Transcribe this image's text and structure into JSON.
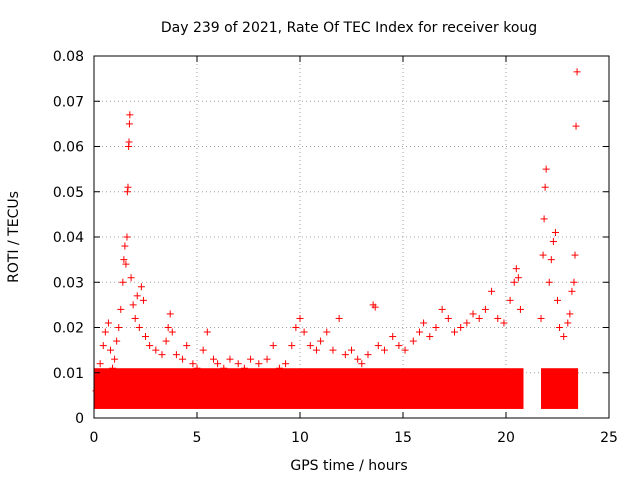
{
  "chart_data": {
    "type": "scatter",
    "title": "Day 239 of 2021, Rate Of TEC Index for receiver koug",
    "xlabel": "GPS time / hours",
    "ylabel": "ROTI / TECUs",
    "xlim": [
      0,
      25
    ],
    "ylim": [
      0,
      0.08
    ],
    "x_ticks": [
      0,
      5,
      10,
      15,
      20,
      25
    ],
    "x_tick_labels": [
      "0",
      "5",
      "10",
      "15",
      "20",
      "25"
    ],
    "y_ticks": [
      0,
      0.01,
      0.02,
      0.03,
      0.04,
      0.05,
      0.06,
      0.07,
      0.08
    ],
    "y_tick_labels": [
      "0",
      "0.01",
      "0.02",
      "0.03",
      "0.04",
      "0.05",
      "0.06",
      "0.07",
      "0.08"
    ],
    "grid": true,
    "marker": "plus",
    "color": "#ff0000",
    "series": [
      {
        "name": "ROTI",
        "points": [
          [
            0.1,
            0.006
          ],
          [
            0.2,
            0.009
          ],
          [
            0.3,
            0.012
          ],
          [
            0.45,
            0.016
          ],
          [
            0.55,
            0.019
          ],
          [
            0.7,
            0.021
          ],
          [
            0.8,
            0.015
          ],
          [
            0.9,
            0.011
          ],
          [
            1.0,
            0.013
          ],
          [
            1.1,
            0.017
          ],
          [
            1.2,
            0.02
          ],
          [
            1.3,
            0.024
          ],
          [
            1.4,
            0.03
          ],
          [
            1.45,
            0.035
          ],
          [
            1.5,
            0.038
          ],
          [
            1.55,
            0.034
          ],
          [
            1.6,
            0.04
          ],
          [
            1.62,
            0.05
          ],
          [
            1.65,
            0.051
          ],
          [
            1.68,
            0.06
          ],
          [
            1.7,
            0.061
          ],
          [
            1.72,
            0.065
          ],
          [
            1.74,
            0.067
          ],
          [
            1.8,
            0.031
          ],
          [
            1.9,
            0.025
          ],
          [
            2.0,
            0.022
          ],
          [
            2.1,
            0.027
          ],
          [
            2.2,
            0.02
          ],
          [
            2.3,
            0.029
          ],
          [
            2.4,
            0.026
          ],
          [
            2.5,
            0.018
          ],
          [
            2.7,
            0.016
          ],
          [
            3.0,
            0.015
          ],
          [
            3.3,
            0.014
          ],
          [
            3.5,
            0.017
          ],
          [
            3.6,
            0.02
          ],
          [
            3.7,
            0.023
          ],
          [
            3.8,
            0.019
          ],
          [
            4.0,
            0.014
          ],
          [
            4.3,
            0.013
          ],
          [
            4.5,
            0.016
          ],
          [
            4.8,
            0.012
          ],
          [
            5.0,
            0.011
          ],
          [
            5.3,
            0.015
          ],
          [
            5.5,
            0.019
          ],
          [
            5.8,
            0.013
          ],
          [
            6.0,
            0.012
          ],
          [
            6.3,
            0.011
          ],
          [
            6.6,
            0.013
          ],
          [
            7.0,
            0.012
          ],
          [
            7.3,
            0.011
          ],
          [
            7.6,
            0.013
          ],
          [
            8.0,
            0.012
          ],
          [
            8.4,
            0.013
          ],
          [
            8.7,
            0.016
          ],
          [
            9.0,
            0.011
          ],
          [
            9.3,
            0.012
          ],
          [
            9.6,
            0.016
          ],
          [
            9.8,
            0.02
          ],
          [
            10.0,
            0.022
          ],
          [
            10.2,
            0.019
          ],
          [
            10.5,
            0.016
          ],
          [
            10.8,
            0.015
          ],
          [
            11.0,
            0.017
          ],
          [
            11.3,
            0.019
          ],
          [
            11.6,
            0.015
          ],
          [
            11.9,
            0.022
          ],
          [
            12.2,
            0.014
          ],
          [
            12.5,
            0.015
          ],
          [
            12.8,
            0.013
          ],
          [
            13.0,
            0.012
          ],
          [
            13.3,
            0.014
          ],
          [
            13.55,
            0.025
          ],
          [
            13.65,
            0.0245
          ],
          [
            13.8,
            0.016
          ],
          [
            14.1,
            0.015
          ],
          [
            14.5,
            0.018
          ],
          [
            14.8,
            0.016
          ],
          [
            15.1,
            0.015
          ],
          [
            15.5,
            0.017
          ],
          [
            15.8,
            0.019
          ],
          [
            16.0,
            0.021
          ],
          [
            16.3,
            0.018
          ],
          [
            16.6,
            0.02
          ],
          [
            16.9,
            0.024
          ],
          [
            17.2,
            0.022
          ],
          [
            17.5,
            0.019
          ],
          [
            17.8,
            0.02
          ],
          [
            18.1,
            0.021
          ],
          [
            18.4,
            0.023
          ],
          [
            18.7,
            0.022
          ],
          [
            19.0,
            0.024
          ],
          [
            19.3,
            0.028
          ],
          [
            19.6,
            0.022
          ],
          [
            19.9,
            0.021
          ],
          [
            20.2,
            0.026
          ],
          [
            20.4,
            0.03
          ],
          [
            20.5,
            0.033
          ],
          [
            20.6,
            0.031
          ],
          [
            20.7,
            0.024
          ],
          [
            21.7,
            0.022
          ],
          [
            21.8,
            0.036
          ],
          [
            21.85,
            0.044
          ],
          [
            21.9,
            0.051
          ],
          [
            21.95,
            0.055
          ],
          [
            22.1,
            0.03
          ],
          [
            22.2,
            0.035
          ],
          [
            22.3,
            0.039
          ],
          [
            22.4,
            0.041
          ],
          [
            22.5,
            0.026
          ],
          [
            22.6,
            0.02
          ],
          [
            22.8,
            0.018
          ],
          [
            23.0,
            0.021
          ],
          [
            23.1,
            0.023
          ],
          [
            23.2,
            0.028
          ],
          [
            23.3,
            0.03
          ],
          [
            23.35,
            0.036
          ],
          [
            23.4,
            0.0645
          ],
          [
            23.45,
            0.0765
          ]
        ],
        "band": {
          "segments": [
            [
              0.0,
              20.85
            ],
            [
              21.7,
              23.5
            ]
          ],
          "lower": 0.002,
          "upper": 0.011,
          "description": "dense cluster of points"
        }
      }
    ]
  }
}
